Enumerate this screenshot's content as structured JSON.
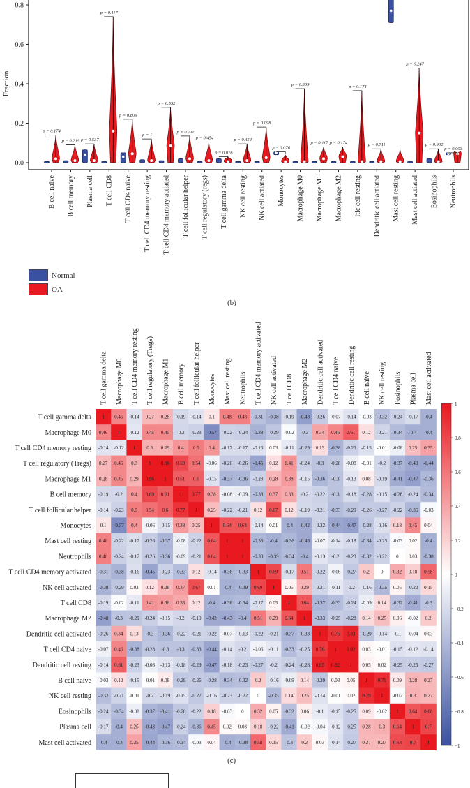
{
  "chart_data": [
    {
      "type": "violin",
      "panel_label": "(b)",
      "ylabel": "Fraction",
      "yticks": [
        "0.0",
        "0.2",
        "0.4",
        "0.6",
        "0.8"
      ],
      "ylim": [
        0,
        0.82
      ],
      "legend": [
        {
          "name": "Normal",
          "color": "#3a50a0"
        },
        {
          "name": "OA",
          "color": "#e8191f"
        }
      ],
      "legend_placement": "bottom-left",
      "categories": [
        "B cell naive",
        "B cell memory",
        "Plasma cell",
        "T cell CD8",
        "T cell CD4 naive",
        "T cell CD4 memory resting",
        "T cell CD4 memory actiated",
        "T cell follicular helper",
        "T cell regulatory (regs)",
        "T cell gamma delta",
        "NK cell resting",
        "NK cell actiated",
        "Monocytes",
        "Macrophage M0",
        "Macrophage M1",
        "Macrophage M2",
        "itic cell resting",
        "Dendritic cell actiated",
        "Mast cell resting",
        "Mast cell actiated",
        "Eosinophils",
        "Neutrophils"
      ],
      "p_values": [
        "p = 0.174",
        "p = 0.219",
        "p = 0.537",
        "p = 0.117",
        "p = 0.809",
        "p = 1",
        "p = 0.552",
        "p = 0.711",
        "p = 0.454",
        "p = 0.076",
        "p = 0.454",
        "p = 0.098",
        "p = 0.076",
        "p = 0.339",
        "p = 0.117",
        "p = 0.174",
        "p = 0.174",
        "p = 0.711",
        "",
        "p = 0.247",
        "p = 0.902",
        "p = 0.003"
      ],
      "series": [
        {
          "name": "Normal",
          "max": [
            0,
            0.01,
            0.065,
            0,
            0.05,
            0.015,
            0.01,
            0.02,
            0,
            0.02,
            0,
            0.005,
            0.055,
            0,
            0,
            0,
            0,
            0.005,
            0.9,
            0,
            0.02,
            0.05
          ],
          "min": [
            0,
            0,
            0,
            0,
            0,
            0,
            0,
            0,
            0,
            0,
            0,
            0,
            0.04,
            0,
            0,
            0,
            0,
            0,
            0.71,
            0,
            0,
            0.04
          ],
          "median": [
            0,
            0.005,
            0.04,
            0,
            0.03,
            0.01,
            0.005,
            0.015,
            0,
            0.01,
            0,
            0,
            0.05,
            0,
            0,
            0,
            0,
            0,
            0.77,
            0,
            0.01,
            0.045
          ]
        },
        {
          "name": "OA",
          "max": [
            0.14,
            0.09,
            0.095,
            0.74,
            0.22,
            0.12,
            0.28,
            0.135,
            0.105,
            0.03,
            0.095,
            0.18,
            0.04,
            0.375,
            0.08,
            0.08,
            0.365,
            0.07,
            0.065,
            0.48,
            0.07,
            0.05
          ],
          "median": [
            0.02,
            0.01,
            0.01,
            0.16,
            0.045,
            0.01,
            0.085,
            0.02,
            0.01,
            0.005,
            0.01,
            0.025,
            0.005,
            0.005,
            0.02,
            0.03,
            0.005,
            0.005,
            0.005,
            0.15,
            0.005,
            0.045
          ]
        }
      ]
    },
    {
      "type": "heatmap",
      "panel_label": "(c)",
      "labels": [
        "T cell gamma delta",
        "Macrophage M0",
        "T cell CD4 memory resting",
        "T cell regulatory (Tregs)",
        "Macrophage M1",
        "B cell memory",
        "T cell follicular helper",
        "Monocytes",
        "Mast cell resting",
        "Neutrophils",
        "T cell CD4 memory activated",
        "NK cell activated",
        "T cell CD8",
        "Macrophage M2",
        "Dendritic cell activated",
        "T cell CD4 naive",
        "Dendritic cell resting",
        "B cell naive",
        "NK cell resting",
        "Eosinophils",
        "Plasma cell",
        "Mast cell activated"
      ],
      "colorbar": {
        "range": [
          -1,
          1
        ],
        "ticks": [
          "1",
          "0.8",
          "0.6",
          "0.4",
          "0.2",
          "0",
          "−0.2",
          "−0.4",
          "−0.6",
          "−0.8",
          "−1"
        ],
        "low_color": "#3a50a0",
        "mid_color": "#ffffff",
        "high_color": "#e8191f"
      },
      "values": [
        [
          1,
          0.46,
          -0.14,
          0.27,
          0.28,
          -0.19,
          -0.14,
          0.1,
          0.48,
          0.48,
          -0.31,
          -0.38,
          -0.19,
          -0.48,
          -0.26,
          -0.07,
          -0.14,
          -0.03,
          -0.32,
          -0.24,
          -0.17,
          -0.4
        ],
        [
          0.46,
          1,
          -0.12,
          0.45,
          0.45,
          -0.2,
          -0.23,
          -0.57,
          -0.22,
          -0.24,
          -0.38,
          -0.29,
          -0.02,
          -0.3,
          0.34,
          0.46,
          0.61,
          0.12,
          -0.21,
          -0.34,
          -0.4,
          -0.4
        ],
        [
          -0.14,
          -0.12,
          1,
          0.3,
          0.29,
          0.4,
          0.5,
          0.4,
          -0.17,
          -0.17,
          -0.16,
          0.03,
          -0.11,
          -0.29,
          0.13,
          -0.38,
          -0.23,
          -0.15,
          -0.01,
          -0.08,
          0.25,
          0.35
        ],
        [
          0.27,
          0.45,
          0.3,
          1,
          0.96,
          0.69,
          0.54,
          -0.06,
          -0.26,
          -0.26,
          -0.45,
          0.12,
          0.41,
          -0.24,
          -0.3,
          -0.28,
          -0.08,
          -0.01,
          -0.2,
          -0.37,
          -0.43,
          -0.44
        ],
        [
          0.28,
          0.45,
          0.29,
          0.96,
          1,
          0.61,
          0.6,
          -0.15,
          -0.37,
          -0.36,
          -0.23,
          0.28,
          0.38,
          -0.15,
          -0.36,
          -0.3,
          -0.13,
          0.08,
          -0.19,
          -0.41,
          -0.47,
          -0.36
        ],
        [
          -0.19,
          -0.2,
          0.4,
          0.69,
          0.61,
          1,
          0.77,
          0.38,
          -0.08,
          -0.09,
          -0.33,
          0.37,
          0.33,
          -0.2,
          -0.22,
          -0.3,
          -0.18,
          -0.28,
          -0.15,
          -0.28,
          -0.24,
          -0.34
        ],
        [
          -0.14,
          -0.23,
          0.5,
          0.54,
          0.6,
          0.77,
          1,
          0.25,
          -0.22,
          -0.21,
          0.12,
          0.67,
          0.12,
          -0.19,
          -0.21,
          -0.33,
          -0.29,
          -0.26,
          -0.27,
          -0.22,
          -0.36,
          -0.03
        ],
        [
          0.1,
          -0.57,
          0.4,
          -0.06,
          -0.15,
          0.38,
          0.25,
          1,
          0.64,
          0.64,
          -0.14,
          0.01,
          -0.4,
          -0.42,
          -0.22,
          -0.44,
          -0.47,
          -0.28,
          -0.16,
          0.18,
          0.45,
          0.04
        ],
        [
          0.48,
          -0.22,
          -0.17,
          -0.26,
          -0.37,
          -0.08,
          -0.22,
          0.64,
          1,
          1,
          -0.36,
          -0.4,
          -0.36,
          -0.43,
          -0.07,
          -0.14,
          -0.18,
          -0.34,
          -0.23,
          -0.03,
          0.02,
          -0.4
        ],
        [
          0.48,
          -0.24,
          -0.17,
          -0.26,
          -0.36,
          -0.09,
          -0.21,
          0.64,
          1,
          1,
          -0.33,
          -0.39,
          -0.34,
          -0.4,
          -0.13,
          -0.2,
          -0.23,
          -0.32,
          -0.22,
          0,
          0.03,
          -0.38
        ],
        [
          -0.31,
          -0.38,
          -0.16,
          -0.45,
          -0.23,
          -0.33,
          0.12,
          -0.14,
          -0.36,
          -0.33,
          1,
          0.69,
          -0.17,
          0.51,
          -0.22,
          -0.06,
          -0.27,
          0.2,
          0,
          0.32,
          0.18,
          0.58
        ],
        [
          -0.38,
          -0.29,
          0.03,
          0.12,
          0.28,
          0.37,
          0.67,
          0.01,
          -0.4,
          -0.39,
          0.69,
          1,
          0.05,
          0.29,
          -0.21,
          -0.11,
          -0.2,
          -0.16,
          -0.35,
          0.05,
          -0.22,
          0.15
        ],
        [
          -0.19,
          -0.02,
          -0.11,
          0.41,
          0.38,
          0.33,
          0.12,
          -0.4,
          -0.36,
          -0.34,
          -0.17,
          0.05,
          1,
          0.64,
          -0.37,
          -0.33,
          -0.24,
          -0.09,
          0.14,
          -0.32,
          -0.41,
          -0.3
        ],
        [
          -0.48,
          -0.3,
          -0.29,
          -0.24,
          -0.15,
          -0.2,
          -0.19,
          -0.42,
          -0.43,
          -0.4,
          0.51,
          0.29,
          0.64,
          1,
          -0.33,
          -0.25,
          -0.28,
          0.14,
          0.25,
          0.06,
          -0.02,
          0.2
        ],
        [
          -0.26,
          0.34,
          0.13,
          -0.3,
          -0.36,
          -0.22,
          -0.21,
          -0.22,
          -0.07,
          -0.13,
          -0.22,
          -0.21,
          -0.37,
          -0.33,
          1,
          0.76,
          0.83,
          -0.29,
          -0.14,
          -0.1,
          -0.04,
          0.03
        ],
        [
          -0.07,
          0.46,
          -0.38,
          -0.28,
          -0.3,
          -0.3,
          -0.33,
          -0.44,
          -0.14,
          -0.2,
          -0.06,
          -0.11,
          -0.33,
          -0.25,
          0.76,
          1,
          0.92,
          0.03,
          -0.01,
          -0.15,
          -0.12,
          -0.14
        ],
        [
          -0.14,
          0.61,
          -0.23,
          -0.08,
          -0.13,
          -0.18,
          -0.29,
          -0.47,
          -0.18,
          -0.23,
          -0.27,
          -0.2,
          -0.24,
          -0.28,
          0.83,
          0.92,
          1,
          0.05,
          0.02,
          -0.25,
          -0.25,
          -0.27
        ],
        [
          -0.03,
          0.12,
          -0.15,
          -0.01,
          0.08,
          -0.28,
          -0.26,
          -0.28,
          -0.34,
          -0.32,
          0.2,
          -0.16,
          -0.09,
          0.14,
          -0.29,
          0.03,
          0.05,
          1,
          0.79,
          0.09,
          0.28,
          0.27
        ],
        [
          -0.32,
          -0.21,
          -0.01,
          -0.2,
          -0.19,
          -0.15,
          -0.27,
          -0.16,
          -0.23,
          -0.22,
          0,
          -0.35,
          0.14,
          0.25,
          -0.14,
          -0.01,
          0.02,
          0.79,
          1,
          -0.02,
          0.3,
          0.27
        ],
        [
          -0.24,
          -0.34,
          -0.08,
          -0.37,
          -0.41,
          -0.28,
          -0.22,
          0.18,
          -0.03,
          0,
          0.32,
          0.05,
          -0.32,
          0.06,
          -0.1,
          -0.15,
          -0.25,
          0.09,
          -0.02,
          1,
          0.64,
          0.68
        ],
        [
          -0.17,
          -0.4,
          0.25,
          -0.43,
          -0.47,
          -0.24,
          -0.36,
          0.45,
          0.02,
          0.03,
          0.18,
          -0.22,
          -0.41,
          -0.02,
          -0.04,
          -0.12,
          -0.25,
          0.28,
          0.3,
          0.64,
          1,
          0.7
        ],
        [
          -0.4,
          -0.4,
          0.35,
          -0.44,
          -0.36,
          -0.34,
          -0.03,
          0.04,
          -0.4,
          -0.38,
          0.58,
          0.15,
          -0.3,
          0.2,
          0.03,
          -0.14,
          -0.27,
          0.27,
          0.27,
          0.68,
          0.7,
          1
        ]
      ]
    }
  ]
}
